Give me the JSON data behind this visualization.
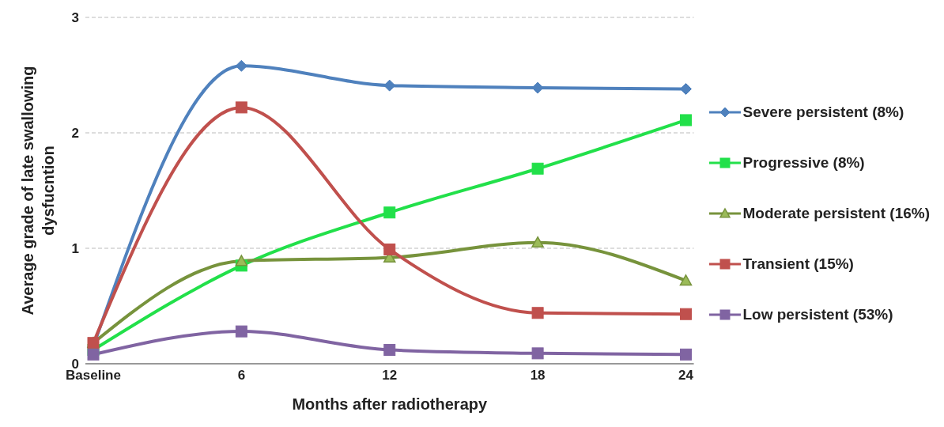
{
  "chart_data": {
    "type": "line",
    "xlabel": "Months after radiotherapy",
    "ylabel": "Average grade of late swallowing dysfucntion",
    "categories": [
      "Baseline",
      "6",
      "12",
      "18",
      "24"
    ],
    "ylim": [
      0,
      3
    ],
    "yticks": [
      0,
      1,
      2,
      3
    ],
    "grid": "y",
    "legend": "right",
    "line_style": "solid",
    "series": [
      {
        "name": "Severe persistent (8%)",
        "color": "#4f81bd",
        "marker": "diamond",
        "values": [
          0.15,
          2.58,
          2.41,
          2.39,
          2.38
        ]
      },
      {
        "name": "Progressive (8%)",
        "color": "#22e04a",
        "marker": "square",
        "values": [
          0.12,
          0.85,
          1.31,
          1.69,
          2.11
        ]
      },
      {
        "name": "Moderate persistent (16%)",
        "color": "#77933c",
        "marker": "triangle",
        "values": [
          0.18,
          0.89,
          0.92,
          1.05,
          0.72
        ]
      },
      {
        "name": "Transient (15%)",
        "color": "#c0504d",
        "marker": "square",
        "values": [
          0.18,
          2.22,
          0.99,
          0.44,
          0.43
        ]
      },
      {
        "name": "Low persistent (53%)",
        "color": "#8064a2",
        "marker": "square",
        "values": [
          0.08,
          0.28,
          0.12,
          0.09,
          0.08
        ]
      }
    ]
  }
}
